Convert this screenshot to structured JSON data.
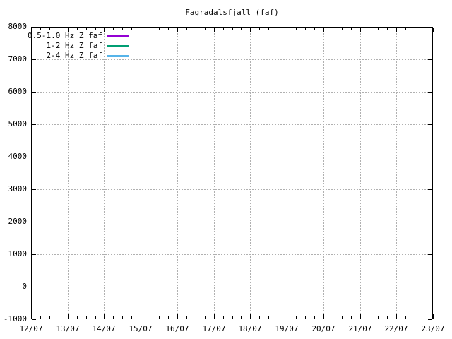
{
  "chart_data": {
    "type": "line",
    "title": "Fagradalsfjall (faf)",
    "xlabel": "",
    "ylabel": "",
    "x_tick_labels": [
      "12/07",
      "13/07",
      "14/07",
      "15/07",
      "16/07",
      "17/07",
      "18/07",
      "19/07",
      "20/07",
      "21/07",
      "22/07",
      "23/07"
    ],
    "x_minor_ticks_per_interval": 3,
    "y_ticks": [
      8000,
      7000,
      6000,
      5000,
      4000,
      3000,
      2000,
      1000,
      0,
      -1000
    ],
    "ylim": [
      -1000,
      8000
    ],
    "grid": true,
    "grid_style": "dashed",
    "legend_position": "top-left",
    "series": [
      {
        "name": "0.5-1.0 Hz Z faf",
        "color": "#9400d3",
        "values": []
      },
      {
        "name": "1-2 Hz Z faf",
        "color": "#009e73",
        "values": []
      },
      {
        "name": "2-4 Hz Z faf",
        "color": "#56b4e9",
        "values": []
      }
    ],
    "colors": {
      "background": "#ffffff",
      "axis": "#000000",
      "grid": "#b0b0b0",
      "text": "#000000"
    }
  }
}
